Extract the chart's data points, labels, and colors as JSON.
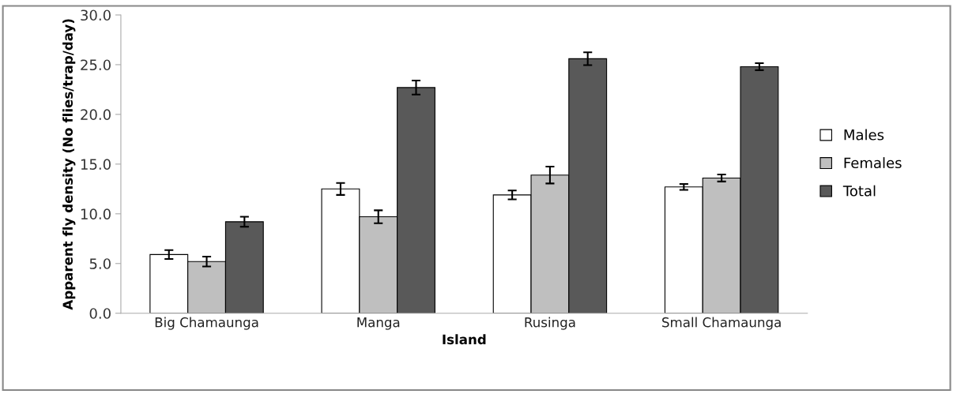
{
  "chart_data": {
    "type": "bar",
    "xlabel": "Island",
    "ylabel": "Apparent fly density (No flies/trap/day)",
    "categories": [
      "Big Chamaunga",
      "Manga",
      "Rusinga",
      "Small Chamaunga"
    ],
    "series": [
      {
        "name": "Males",
        "color": "#ffffff",
        "values": [
          5.9,
          12.5,
          11.9,
          12.7
        ],
        "errors": [
          0.45,
          0.6,
          0.45,
          0.3
        ]
      },
      {
        "name": "Females",
        "color": "#bfbfbf",
        "values": [
          5.2,
          9.7,
          13.9,
          13.6
        ],
        "errors": [
          0.5,
          0.65,
          0.85,
          0.35
        ]
      },
      {
        "name": "Total",
        "color": "#595959",
        "values": [
          9.2,
          22.7,
          25.6,
          24.8
        ],
        "errors": [
          0.5,
          0.7,
          0.65,
          0.35
        ]
      }
    ],
    "ylim": [
      0,
      30
    ],
    "yticks": [
      {
        "value": 0,
        "label": "0.0"
      },
      {
        "value": 5,
        "label": "5.0"
      },
      {
        "value": 10,
        "label": "10.0"
      },
      {
        "value": 15,
        "label": "15.0"
      },
      {
        "value": 20,
        "label": "20.0"
      },
      {
        "value": 25,
        "label": "25.0"
      },
      {
        "value": 30,
        "label": "30.0"
      }
    ],
    "grid": false,
    "legend": "right"
  }
}
